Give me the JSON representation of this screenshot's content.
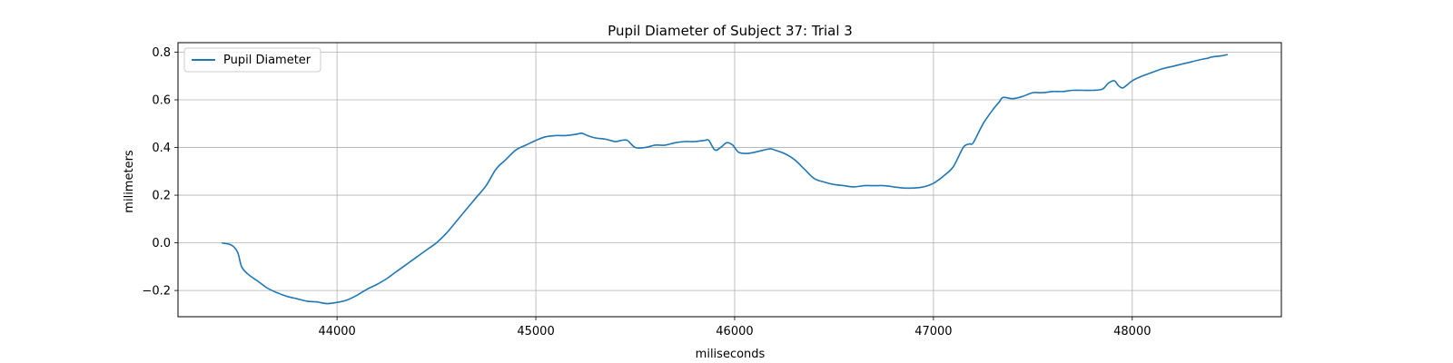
{
  "chart_data": {
    "type": "line",
    "title": "Pupil Diameter of Subject 37: Trial 3",
    "xlabel": "miliseconds",
    "ylabel": "milimeters",
    "xlim": [
      43200,
      48750
    ],
    "ylim": [
      -0.31,
      0.84
    ],
    "xticks": [
      44000,
      45000,
      46000,
      47000,
      48000
    ],
    "yticks": [
      -0.2,
      0.0,
      0.2,
      0.4,
      0.6,
      0.8
    ],
    "xtick_labels": [
      "44000",
      "45000",
      "46000",
      "47000",
      "48000"
    ],
    "ytick_labels": [
      "−0.2",
      "0.0",
      "0.2",
      "0.4",
      "0.6",
      "0.8"
    ],
    "grid": true,
    "legend_position": "top-left",
    "series": [
      {
        "name": "Pupil Diameter",
        "color": "#1f77b4",
        "x": [
          43420,
          43470,
          43500,
          43520,
          43550,
          43600,
          43650,
          43700,
          43750,
          43800,
          43850,
          43900,
          43950,
          44000,
          44050,
          44100,
          44150,
          44200,
          44250,
          44300,
          44350,
          44400,
          44450,
          44500,
          44550,
          44600,
          44650,
          44700,
          44750,
          44800,
          44850,
          44900,
          44950,
          45000,
          45050,
          45100,
          45150,
          45200,
          45230,
          45260,
          45300,
          45350,
          45400,
          45430,
          45460,
          45500,
          45550,
          45600,
          45650,
          45700,
          45750,
          45800,
          45850,
          45870,
          45900,
          45930,
          45960,
          45990,
          46020,
          46060,
          46100,
          46150,
          46180,
          46200,
          46250,
          46300,
          46350,
          46400,
          46450,
          46500,
          46550,
          46600,
          46650,
          46700,
          46750,
          46800,
          46850,
          46900,
          46950,
          47000,
          47050,
          47100,
          47150,
          47180,
          47200,
          47250,
          47300,
          47330,
          47350,
          47400,
          47450,
          47500,
          47550,
          47600,
          47650,
          47700,
          47750,
          47800,
          47850,
          47880,
          47910,
          47930,
          47950,
          47970,
          48000,
          48050,
          48100,
          48150,
          48200,
          48250,
          48300,
          48350,
          48380,
          48400,
          48450,
          48480
        ],
        "y": [
          0.0,
          -0.01,
          -0.04,
          -0.1,
          -0.13,
          -0.16,
          -0.19,
          -0.21,
          -0.225,
          -0.235,
          -0.245,
          -0.248,
          -0.255,
          -0.25,
          -0.24,
          -0.22,
          -0.195,
          -0.175,
          -0.15,
          -0.12,
          -0.09,
          -0.06,
          -0.03,
          0.0,
          0.04,
          0.09,
          0.14,
          0.19,
          0.24,
          0.31,
          0.35,
          0.39,
          0.41,
          0.43,
          0.445,
          0.45,
          0.45,
          0.455,
          0.46,
          0.45,
          0.44,
          0.435,
          0.425,
          0.43,
          0.43,
          0.4,
          0.4,
          0.41,
          0.41,
          0.42,
          0.425,
          0.425,
          0.43,
          0.43,
          0.39,
          0.4,
          0.42,
          0.41,
          0.38,
          0.375,
          0.38,
          0.39,
          0.395,
          0.39,
          0.375,
          0.35,
          0.31,
          0.27,
          0.255,
          0.245,
          0.24,
          0.235,
          0.24,
          0.24,
          0.24,
          0.235,
          0.23,
          0.23,
          0.235,
          0.25,
          0.28,
          0.32,
          0.4,
          0.415,
          0.42,
          0.5,
          0.56,
          0.59,
          0.61,
          0.605,
          0.615,
          0.63,
          0.63,
          0.635,
          0.635,
          0.64,
          0.64,
          0.64,
          0.645,
          0.67,
          0.68,
          0.66,
          0.65,
          0.66,
          0.68,
          0.7,
          0.715,
          0.73,
          0.74,
          0.75,
          0.76,
          0.77,
          0.775,
          0.78,
          0.785,
          0.79
        ]
      }
    ]
  }
}
